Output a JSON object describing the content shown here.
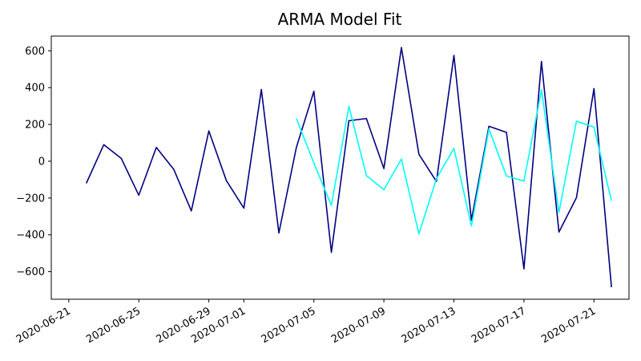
{
  "chart_data": {
    "type": "line",
    "title": "ARMA Model Fit",
    "xlabel": "",
    "ylabel": "",
    "x_axis_type": "date",
    "xlim": [
      "2020-06-20",
      "2020-07-23"
    ],
    "ylim": [
      -750,
      680
    ],
    "x_ticks": [
      "2020-06-21",
      "2020-06-25",
      "2020-06-29",
      "2020-07-01",
      "2020-07-05",
      "2020-07-09",
      "2020-07-13",
      "2020-07-17",
      "2020-07-21"
    ],
    "y_ticks": [
      -600,
      -400,
      -200,
      0,
      200,
      400,
      600
    ],
    "grid": false,
    "legend": false,
    "series": [
      {
        "color": "#000080",
        "x": [
          "2020-06-22",
          "2020-06-23",
          "2020-06-24",
          "2020-06-25",
          "2020-06-26",
          "2020-06-27",
          "2020-06-28",
          "2020-06-29",
          "2020-06-30",
          "2020-07-01",
          "2020-07-02",
          "2020-07-03",
          "2020-07-04",
          "2020-07-05",
          "2020-07-06",
          "2020-07-07",
          "2020-07-08",
          "2020-07-09",
          "2020-07-10",
          "2020-07-11",
          "2020-07-12",
          "2020-07-13",
          "2020-07-14",
          "2020-07-15",
          "2020-07-16",
          "2020-07-17",
          "2020-07-18",
          "2020-07-19",
          "2020-07-20",
          "2020-07-21",
          "2020-07-22"
        ],
        "values": [
          -120,
          90,
          15,
          -185,
          75,
          -45,
          -270,
          165,
          -105,
          -255,
          390,
          -390,
          75,
          380,
          -495,
          220,
          232,
          -40,
          618,
          38,
          -110,
          575,
          -320,
          190,
          157,
          -585,
          542,
          -385,
          -198,
          395,
          -685
        ]
      },
      {
        "color": "#00FFFF",
        "x": [
          "2020-07-04",
          "2020-07-05",
          "2020-07-06",
          "2020-07-07",
          "2020-07-08",
          "2020-07-09",
          "2020-07-10",
          "2020-07-11",
          "2020-07-12",
          "2020-07-13",
          "2020-07-14",
          "2020-07-15",
          "2020-07-16",
          "2020-07-17",
          "2020-07-18",
          "2020-07-19",
          "2020-07-20",
          "2020-07-21",
          "2020-07-22"
        ],
        "values": [
          232,
          -10,
          -240,
          298,
          -78,
          -155,
          12,
          -395,
          -95,
          70,
          -352,
          175,
          -80,
          -108,
          388,
          -278,
          218,
          185,
          -215
        ]
      }
    ]
  }
}
